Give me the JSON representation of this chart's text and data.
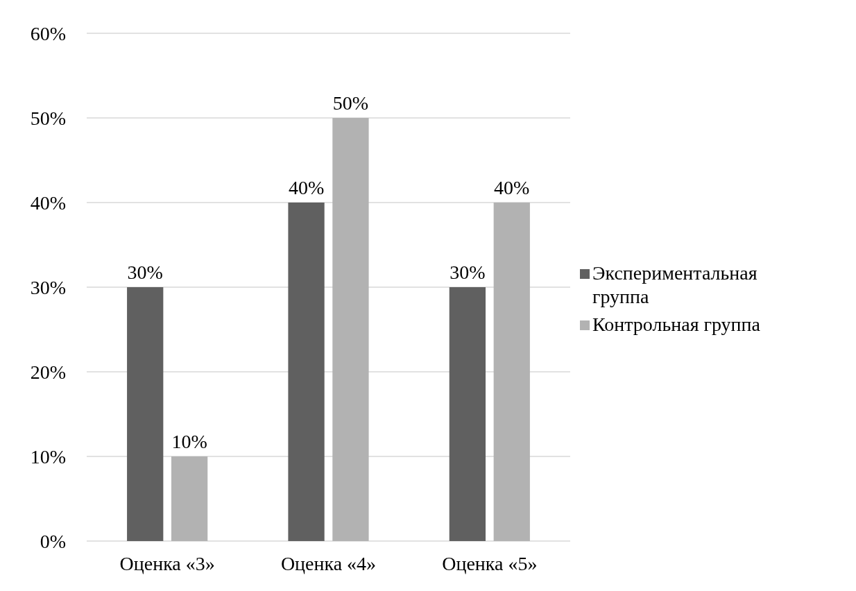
{
  "chart_data": {
    "type": "bar",
    "categories": [
      "Оценка «3»",
      "Оценка «4»",
      "Оценка «5»"
    ],
    "series": [
      {
        "name": "Экспериментальная группа",
        "color": "#606060",
        "values": [
          30,
          40,
          30
        ],
        "value_labels": [
          "30%",
          "40%",
          "30%"
        ]
      },
      {
        "name": "Контрольная группа",
        "color": "#b2b2b2",
        "values": [
          10,
          50,
          40
        ],
        "value_labels": [
          "10%",
          "50%",
          "40%"
        ]
      }
    ],
    "ylim": [
      0,
      60
    ],
    "yticks": [
      {
        "value": 0,
        "label": "0%"
      },
      {
        "value": 10,
        "label": "10%"
      },
      {
        "value": 20,
        "label": "20%"
      },
      {
        "value": 30,
        "label": "30%"
      },
      {
        "value": 40,
        "label": "40%"
      },
      {
        "value": 50,
        "label": "50%"
      },
      {
        "value": 60,
        "label": "60%"
      }
    ],
    "grid": "y",
    "legend": "right"
  }
}
